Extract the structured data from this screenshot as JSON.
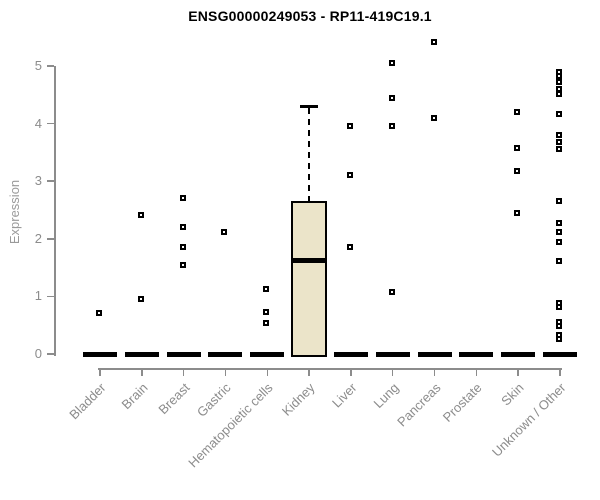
{
  "chart_data": {
    "type": "box",
    "title": "ENSG00000249053 - RP11-419C19.1",
    "xlabel": "",
    "ylabel": "Expression",
    "ylim": [
      0,
      5
    ],
    "yticks": [
      0,
      1,
      2,
      3,
      4,
      5
    ],
    "grid": false,
    "legend": null,
    "categories": [
      "Bladder",
      "Brain",
      "Breast",
      "Gastric",
      "Hematopoietic cells",
      "Kidney",
      "Liver",
      "Lung",
      "Pancreas",
      "Prostate",
      "Skin",
      "Unknown / Other"
    ],
    "boxes": [
      {
        "category": "Bladder",
        "q1": 0,
        "median": 0,
        "q3": 0,
        "whisker_low": 0,
        "whisker_high": 0,
        "outliers": [
          0.72
        ]
      },
      {
        "category": "Brain",
        "q1": 0,
        "median": 0,
        "q3": 0,
        "whisker_low": 0,
        "whisker_high": 0,
        "outliers": [
          2.41,
          0.95
        ]
      },
      {
        "category": "Breast",
        "q1": 0,
        "median": 0,
        "q3": 0,
        "whisker_low": 0,
        "whisker_high": 0,
        "outliers": [
          2.71,
          2.21,
          1.85,
          1.55
        ]
      },
      {
        "category": "Gastric",
        "q1": 0,
        "median": 0,
        "q3": 0,
        "whisker_low": 0,
        "whisker_high": 0,
        "outliers": [
          2.12
        ]
      },
      {
        "category": "Hematopoietic cells",
        "q1": 0,
        "median": 0,
        "q3": 0,
        "whisker_low": 0,
        "whisker_high": 0,
        "outliers": [
          1.13,
          0.73,
          0.54
        ]
      },
      {
        "category": "Kidney",
        "q1": 0,
        "median": 1.63,
        "q3": 2.65,
        "whisker_low": 0,
        "whisker_high": 4.3,
        "outliers": []
      },
      {
        "category": "Liver",
        "q1": 0,
        "median": 0,
        "q3": 0,
        "whisker_low": 0,
        "whisker_high": 0,
        "outliers": [
          3.95,
          3.11,
          1.85
        ]
      },
      {
        "category": "Lung",
        "q1": 0,
        "median": 0,
        "q3": 0,
        "whisker_low": 0,
        "whisker_high": 0,
        "outliers": [
          5.06,
          4.45,
          3.96,
          1.07
        ]
      },
      {
        "category": "Pancreas",
        "q1": 0,
        "median": 0,
        "q3": 0,
        "whisker_low": 0,
        "whisker_high": 0,
        "outliers": [
          5.42,
          4.1
        ]
      },
      {
        "category": "Prostate",
        "q1": 0,
        "median": 0,
        "q3": 0,
        "whisker_low": 0,
        "whisker_high": 0,
        "outliers": []
      },
      {
        "category": "Skin",
        "q1": 0,
        "median": 0,
        "q3": 0,
        "whisker_low": 0,
        "whisker_high": 0,
        "outliers": [
          4.2,
          3.57,
          3.17,
          2.45
        ]
      },
      {
        "category": "Unknown / Other",
        "q1": 0,
        "median": 0,
        "q3": 0,
        "whisker_low": 0,
        "whisker_high": 0,
        "outliers": [
          4.9,
          4.83,
          4.73,
          4.6,
          4.51,
          4.16,
          3.81,
          3.68,
          3.56,
          2.66,
          2.27,
          2.11,
          1.95,
          1.62,
          0.89,
          0.81,
          0.56,
          0.48,
          0.33,
          0.26
        ]
      }
    ],
    "colors": {
      "box_fill": "#EBE4C9",
      "box_border": "#000000",
      "median": "#000000",
      "outlier": "#000000",
      "axis": "#8C8C8C",
      "tick_label": "#8C8C8C",
      "title": "#000000",
      "background": "#FFFFFF"
    }
  }
}
